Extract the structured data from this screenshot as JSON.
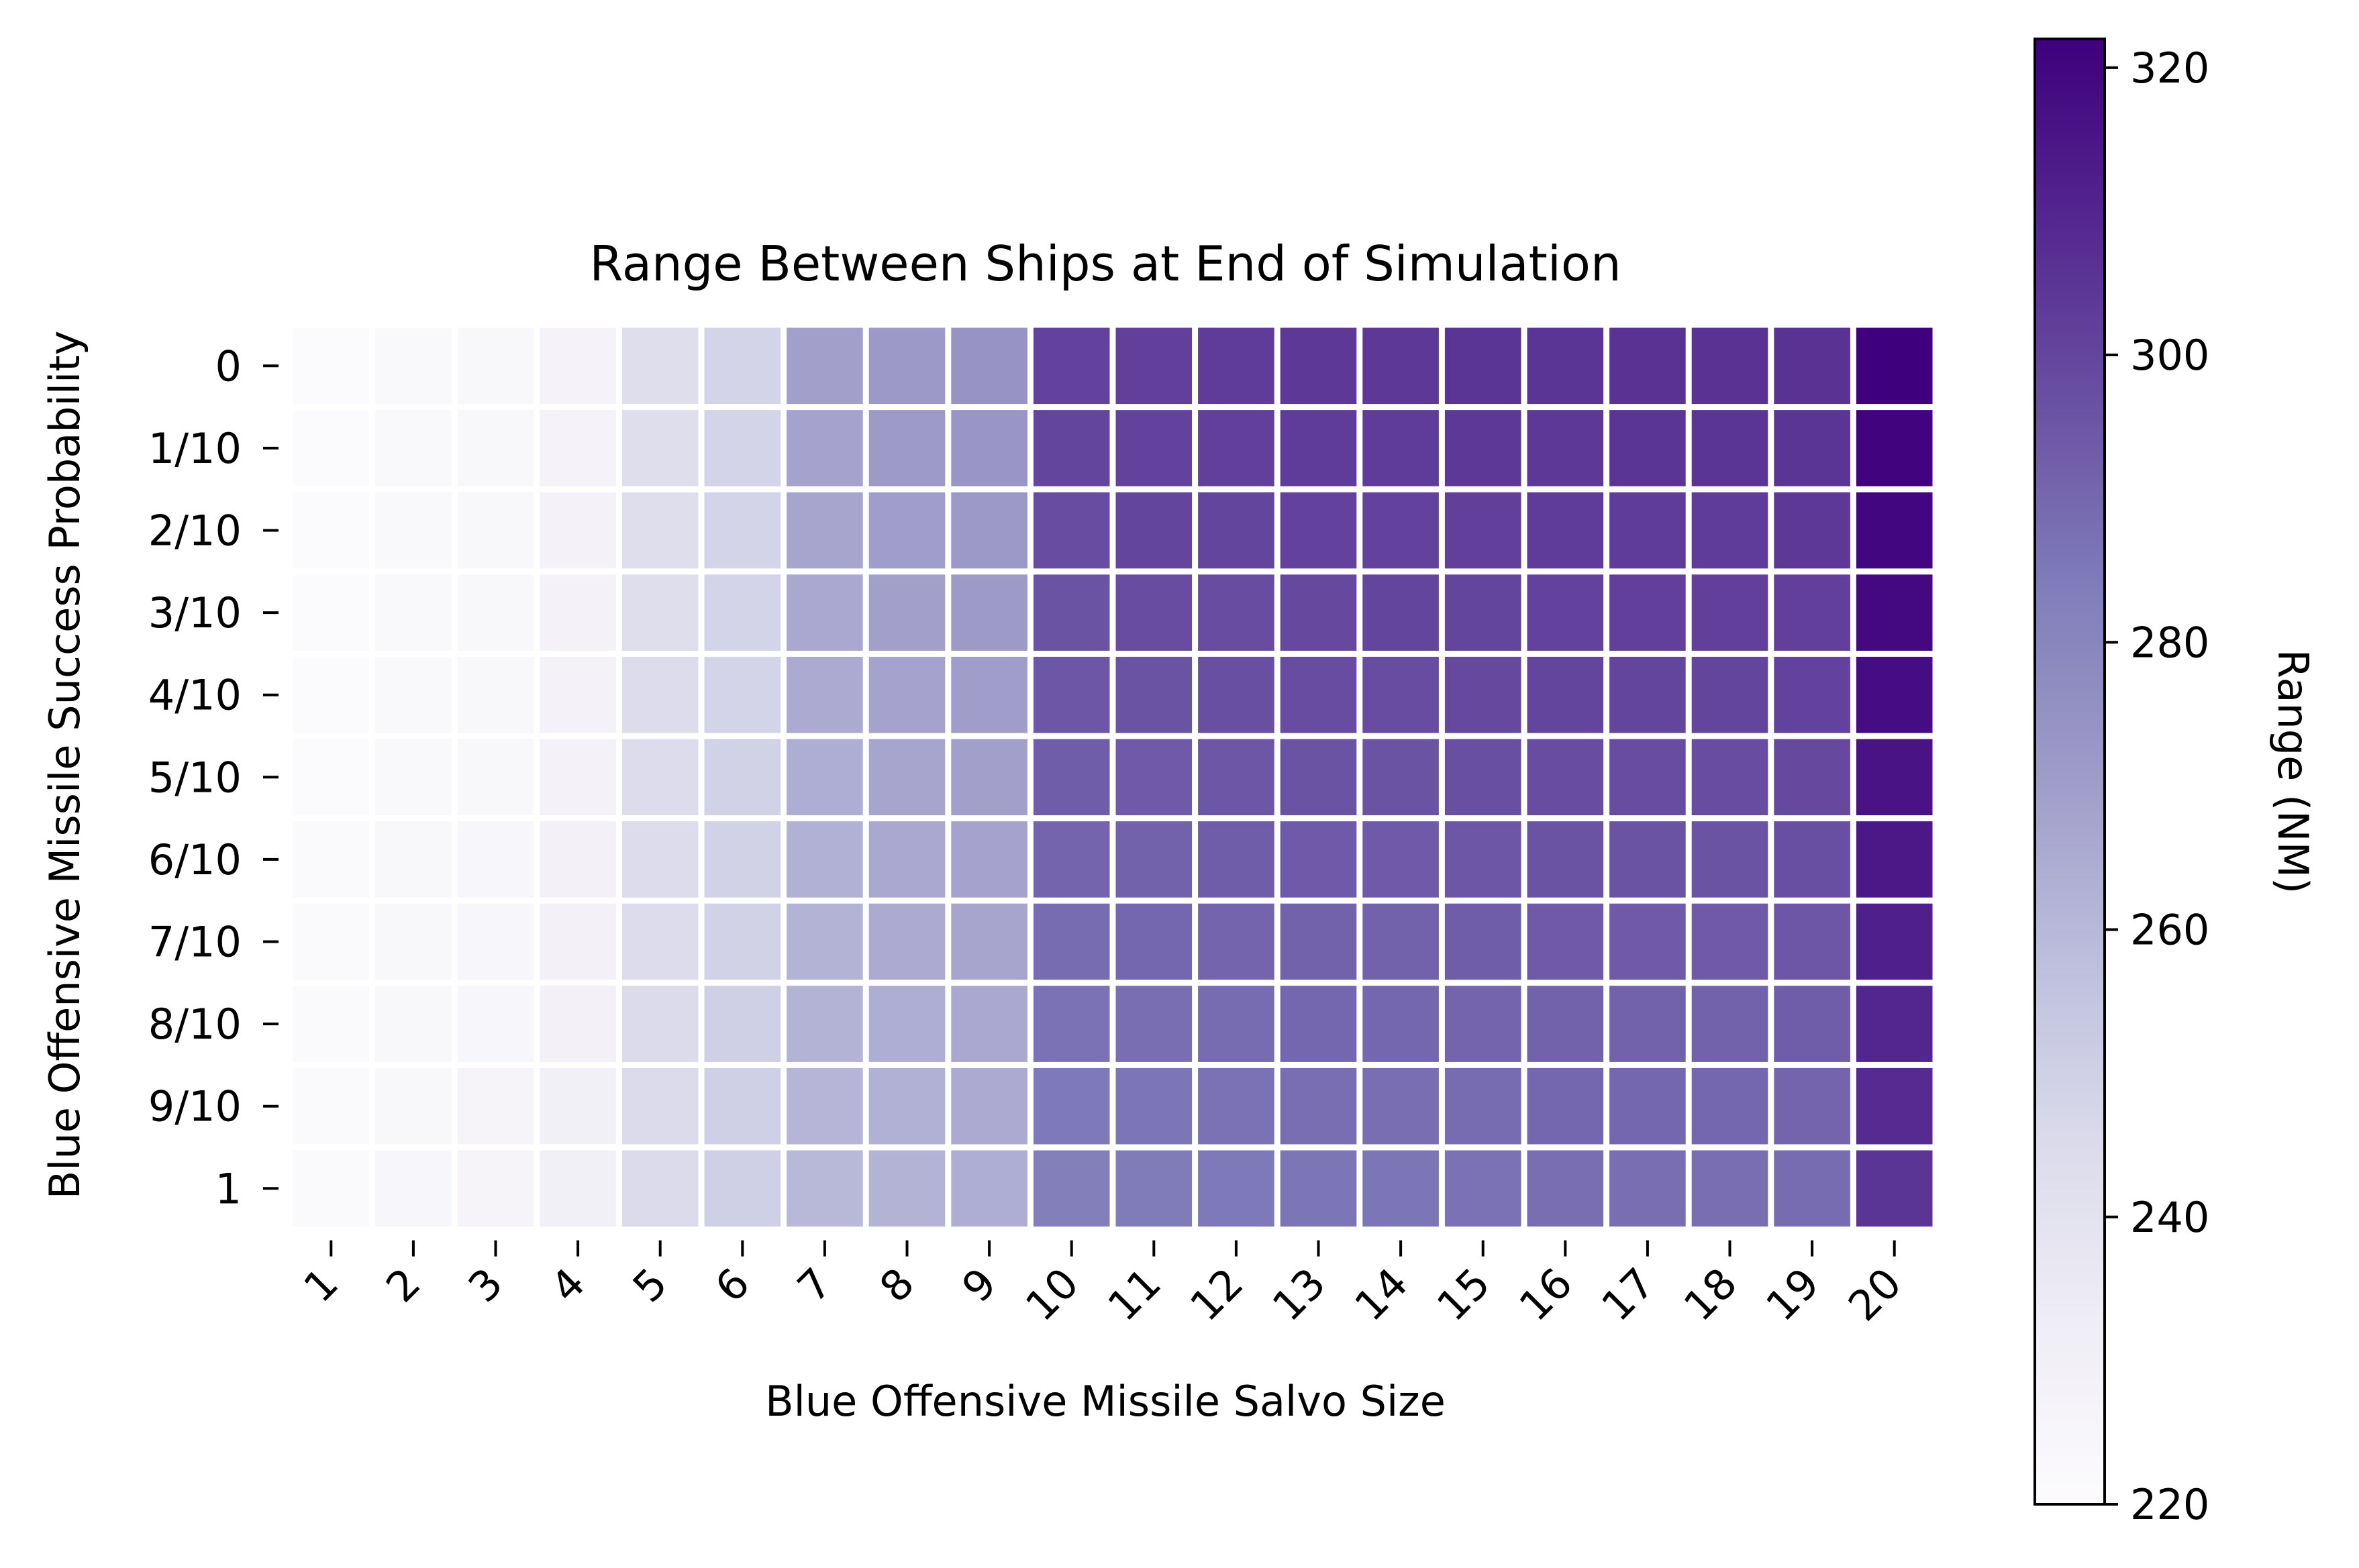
{
  "chart_data": {
    "type": "heatmap",
    "title": "Range Between Ships at End of Simulation",
    "xlabel": "Blue Offensive Missile Salvo Size",
    "ylabel": "Blue Offensive Missile Success Probability",
    "x_categories": [
      "1",
      "2",
      "3",
      "4",
      "5",
      "6",
      "7",
      "8",
      "9",
      "10",
      "11",
      "12",
      "13",
      "14",
      "15",
      "16",
      "17",
      "18",
      "19",
      "20"
    ],
    "y_categories": [
      "0",
      "1/10",
      "2/10",
      "3/10",
      "4/10",
      "5/10",
      "6/10",
      "7/10",
      "8/10",
      "9/10",
      "1"
    ],
    "colorbar": {
      "label": "Range (NM)",
      "range": [
        220,
        322
      ],
      "ticks": [
        220,
        240,
        260,
        280,
        300,
        320
      ],
      "colormap": "Purples",
      "colors": [
        "#fcfbfd",
        "#efedf5",
        "#dadaeb",
        "#bcbddc",
        "#9e9ac8",
        "#807dba",
        "#6a51a3",
        "#54278f",
        "#3f007d"
      ]
    },
    "values": [
      [
        221,
        223,
        224,
        227,
        243,
        248,
        269,
        272,
        274,
        301,
        302,
        303,
        304,
        304,
        305,
        305,
        306,
        306,
        306,
        322
      ],
      [
        221,
        223,
        224,
        227,
        243,
        248,
        268,
        271,
        273,
        300,
        301,
        302,
        303,
        303,
        304,
        304,
        305,
        305,
        305,
        321
      ],
      [
        221,
        223,
        224,
        228,
        243,
        248,
        267,
        270,
        272,
        298,
        300,
        300,
        301,
        301,
        302,
        303,
        303,
        303,
        304,
        320
      ],
      [
        221,
        223,
        224,
        228,
        243,
        248,
        266,
        269,
        271,
        296,
        298,
        298,
        299,
        300,
        300,
        301,
        302,
        302,
        302,
        319
      ],
      [
        221,
        223,
        224,
        228,
        244,
        248,
        265,
        268,
        270,
        295,
        296,
        297,
        298,
        298,
        299,
        300,
        300,
        300,
        301,
        318
      ],
      [
        221,
        223,
        224,
        228,
        244,
        249,
        264,
        267,
        269,
        293,
        294,
        295,
        296,
        296,
        297,
        298,
        298,
        298,
        299,
        316
      ],
      [
        222,
        224,
        225,
        229,
        244,
        249,
        263,
        266,
        268,
        291,
        292,
        293,
        294,
        294,
        295,
        296,
        296,
        296,
        297,
        314
      ],
      [
        222,
        224,
        225,
        229,
        244,
        249,
        262,
        265,
        267,
        289,
        290,
        291,
        292,
        292,
        293,
        294,
        294,
        294,
        295,
        312
      ],
      [
        222,
        224,
        225,
        229,
        245,
        250,
        262,
        264,
        266,
        287,
        288,
        289,
        290,
        290,
        291,
        292,
        292,
        292,
        293,
        310
      ],
      [
        222,
        224,
        226,
        230,
        245,
        250,
        261,
        263,
        265,
        285,
        286,
        287,
        288,
        288,
        289,
        290,
        290,
        290,
        291,
        308
      ],
      [
        222,
        225,
        226,
        230,
        245,
        250,
        260,
        262,
        264,
        283,
        284,
        285,
        286,
        286,
        287,
        288,
        288,
        288,
        289,
        305
      ]
    ]
  }
}
